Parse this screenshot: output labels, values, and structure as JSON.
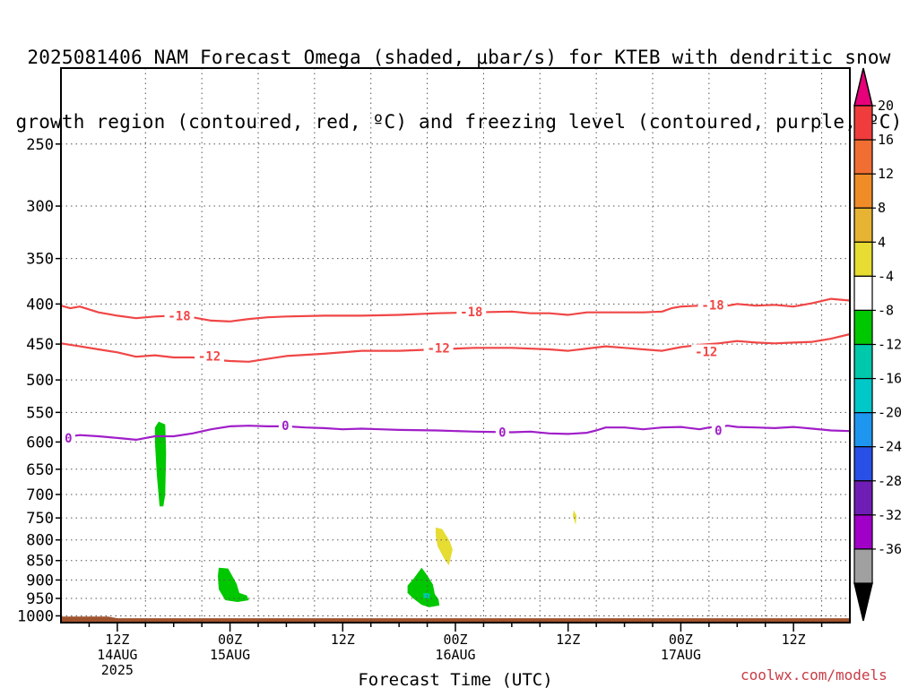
{
  "title_lines": [
    "2025081406 NAM Forecast Omega (shaded, μbar/s) for KTEB with dendritic snow",
    "growth region (contoured, red, ºC) and freezing level (contoured, purple, ºC)"
  ],
  "watermark": "coolwx.com/models",
  "chart_data": {
    "type": "time-height cross section",
    "title": "2025081406 NAM Forecast Omega (shaded, μbar/s) for KTEB with dendritic snow growth region (contoured, red, ºC) and freezing level (contoured, purple, ºC)",
    "xlabel": "Forecast Time (UTC)",
    "ylabel": "",
    "x_range_hours": [
      6,
      90
    ],
    "y_scale": "log",
    "y_range_hpa": [
      1020,
      200
    ],
    "y_ticks": [
      250,
      300,
      350,
      400,
      450,
      500,
      550,
      600,
      650,
      700,
      750,
      800,
      850,
      900,
      950,
      1000
    ],
    "x_ticks": [
      {
        "hour": 12,
        "label": "12Z",
        "date": "14AUG",
        "year": "2025"
      },
      {
        "hour": 24,
        "label": "00Z",
        "date": "15AUG",
        "year": ""
      },
      {
        "hour": 36,
        "label": "12Z",
        "date": "",
        "year": ""
      },
      {
        "hour": 48,
        "label": "00Z",
        "date": "16AUG",
        "year": ""
      },
      {
        "hour": 60,
        "label": "12Z",
        "date": "",
        "year": ""
      },
      {
        "hour": 72,
        "label": "00Z",
        "date": "17AUG",
        "year": ""
      },
      {
        "hour": 84,
        "label": "12Z",
        "date": "",
        "year": ""
      }
    ],
    "grid": true,
    "contours": [
      {
        "name": "-18",
        "color": "#f04646",
        "labels": [
          {
            "hour": 18.6,
            "p": 414
          },
          {
            "hour": 49.7,
            "p": 409
          },
          {
            "hour": 75.4,
            "p": 401
          }
        ],
        "points": [
          [
            6,
            402
          ],
          [
            7,
            405
          ],
          [
            8,
            403
          ],
          [
            10,
            410
          ],
          [
            12,
            414
          ],
          [
            14,
            417
          ],
          [
            16,
            415
          ],
          [
            18,
            414
          ],
          [
            20,
            416
          ],
          [
            22,
            420
          ],
          [
            24,
            421
          ],
          [
            26,
            418
          ],
          [
            28,
            416
          ],
          [
            30,
            415
          ],
          [
            34,
            414
          ],
          [
            38,
            414
          ],
          [
            42,
            413
          ],
          [
            46,
            411
          ],
          [
            50,
            410
          ],
          [
            54,
            409
          ],
          [
            56,
            411
          ],
          [
            58,
            411
          ],
          [
            60,
            413
          ],
          [
            62,
            410
          ],
          [
            64,
            410
          ],
          [
            68,
            410
          ],
          [
            70,
            409
          ],
          [
            71,
            405
          ],
          [
            72,
            403
          ],
          [
            74,
            402
          ],
          [
            76,
            404
          ],
          [
            78,
            400
          ],
          [
            80,
            402
          ],
          [
            82,
            401
          ],
          [
            84,
            403
          ],
          [
            86,
            399
          ],
          [
            88,
            394
          ],
          [
            90,
            396
          ]
        ]
      },
      {
        "name": "-12",
        "color": "#f04646",
        "labels": [
          {
            "hour": 21.8,
            "p": 466
          },
          {
            "hour": 46.2,
            "p": 455
          },
          {
            "hour": 74.7,
            "p": 460
          }
        ],
        "points": [
          [
            6,
            449
          ],
          [
            7,
            451
          ],
          [
            8,
            453
          ],
          [
            10,
            457
          ],
          [
            12,
            461
          ],
          [
            14,
            467
          ],
          [
            16,
            465
          ],
          [
            18,
            468
          ],
          [
            20,
            468
          ],
          [
            22,
            471
          ],
          [
            24,
            473
          ],
          [
            26,
            474
          ],
          [
            28,
            470
          ],
          [
            30,
            466
          ],
          [
            34,
            463
          ],
          [
            38,
            459
          ],
          [
            42,
            459
          ],
          [
            46,
            457
          ],
          [
            50,
            455
          ],
          [
            54,
            455
          ],
          [
            58,
            457
          ],
          [
            60,
            459
          ],
          [
            62,
            456
          ],
          [
            64,
            453
          ],
          [
            66,
            455
          ],
          [
            68,
            457
          ],
          [
            70,
            459
          ],
          [
            72,
            454
          ],
          [
            74,
            451
          ],
          [
            76,
            449
          ],
          [
            78,
            446
          ],
          [
            80,
            448
          ],
          [
            82,
            449
          ],
          [
            84,
            448
          ],
          [
            86,
            447
          ],
          [
            88,
            443
          ],
          [
            90,
            437
          ]
        ]
      },
      {
        "name": "0",
        "color": "#a01ec8",
        "labels": [
          {
            "hour": 6.8,
            "p": 593
          },
          {
            "hour": 29.9,
            "p": 572
          },
          {
            "hour": 53.0,
            "p": 583
          },
          {
            "hour": 76.0,
            "p": 580
          }
        ],
        "points": [
          [
            6,
            592
          ],
          [
            8,
            588
          ],
          [
            10,
            590
          ],
          [
            12,
            593
          ],
          [
            14,
            596
          ],
          [
            16,
            590
          ],
          [
            18,
            590
          ],
          [
            20,
            585
          ],
          [
            22,
            578
          ],
          [
            24,
            573
          ],
          [
            26,
            572
          ],
          [
            28,
            573
          ],
          [
            30,
            573
          ],
          [
            32,
            575
          ],
          [
            34,
            576
          ],
          [
            36,
            578
          ],
          [
            38,
            577
          ],
          [
            40,
            578
          ],
          [
            42,
            579
          ],
          [
            46,
            580
          ],
          [
            50,
            582
          ],
          [
            54,
            583
          ],
          [
            56,
            582
          ],
          [
            58,
            585
          ],
          [
            60,
            586
          ],
          [
            62,
            584
          ],
          [
            63,
            580
          ],
          [
            64,
            575
          ],
          [
            66,
            575
          ],
          [
            68,
            578
          ],
          [
            70,
            575
          ],
          [
            72,
            574
          ],
          [
            74,
            578
          ],
          [
            75,
            575
          ],
          [
            76,
            574
          ],
          [
            77,
            572
          ],
          [
            78,
            574
          ],
          [
            80,
            575
          ],
          [
            82,
            576
          ],
          [
            84,
            574
          ],
          [
            86,
            577
          ],
          [
            88,
            580
          ],
          [
            90,
            581
          ]
        ]
      }
    ],
    "shading": [
      {
        "color": "#00c800",
        "category": "-4 to -8",
        "points": [
          [
            16.4,
            565
          ],
          [
            17.1,
            570
          ],
          [
            17.2,
            620
          ],
          [
            17.1,
            700
          ],
          [
            16.9,
            725
          ],
          [
            16.5,
            725
          ],
          [
            16.2,
            660
          ],
          [
            16.0,
            600
          ],
          [
            16.0,
            575
          ]
        ]
      },
      {
        "color": "#00c800",
        "category": "-4 to -8",
        "points": [
          [
            22.8,
            868
          ],
          [
            23.8,
            870
          ],
          [
            24.7,
            910
          ],
          [
            25.0,
            935
          ],
          [
            25.8,
            942
          ],
          [
            26.0,
            955
          ],
          [
            24.8,
            960
          ],
          [
            23.5,
            955
          ],
          [
            22.8,
            925
          ],
          [
            22.7,
            890
          ]
        ]
      },
      {
        "color": "#00c800",
        "category": "-4 to -8",
        "points": [
          [
            44.4,
            868
          ],
          [
            45.0,
            888
          ],
          [
            45.6,
            912
          ],
          [
            45.8,
            938
          ],
          [
            46.2,
            952
          ],
          [
            46.3,
            970
          ],
          [
            45.2,
            975
          ],
          [
            44.4,
            968
          ],
          [
            43.5,
            950
          ],
          [
            42.9,
            935
          ],
          [
            42.9,
            915
          ],
          [
            43.6,
            895
          ]
        ]
      },
      {
        "color": "#00c8aa",
        "category": "-8 to -12",
        "points": [
          [
            44.6,
            935
          ],
          [
            45.3,
            937
          ],
          [
            45.2,
            950
          ],
          [
            44.6,
            948
          ]
        ]
      },
      {
        "color": "#e6dc32",
        "category": "4 to 8",
        "points": [
          [
            45.9,
            771
          ],
          [
            46.6,
            775
          ],
          [
            47.4,
            803
          ],
          [
            47.7,
            823
          ],
          [
            47.3,
            862
          ],
          [
            46.8,
            845
          ],
          [
            46.1,
            815
          ],
          [
            45.9,
            790
          ]
        ]
      },
      {
        "color": "#e6dc32",
        "category": "4 to 8",
        "points": [
          [
            60.6,
            733
          ],
          [
            60.9,
            745
          ],
          [
            60.8,
            765
          ],
          [
            60.5,
            745
          ]
        ]
      },
      {
        "color": "#a0522d",
        "category": "terrain",
        "points": [
          [
            6,
            1021
          ],
          [
            6,
            1002
          ],
          [
            11,
            1002
          ],
          [
            12,
            1007
          ],
          [
            90,
            1007
          ],
          [
            90,
            1021
          ]
        ]
      }
    ],
    "colorbar": [
      {
        "value": "20",
        "color": "#f03c3c"
      },
      {
        "value": "16",
        "color": "#f06e32"
      },
      {
        "value": "12",
        "color": "#f08c28"
      },
      {
        "value": "8",
        "color": "#e6b432"
      },
      {
        "value": "4",
        "color": "#e6dc32"
      },
      {
        "value": "-4",
        "color": "#ffffff"
      },
      {
        "value": "-8",
        "color": "#00c800"
      },
      {
        "value": "-12",
        "color": "#00c8aa"
      },
      {
        "value": "-16",
        "color": "#00c8c8"
      },
      {
        "value": "-20",
        "color": "#1e96f0"
      },
      {
        "value": "-24",
        "color": "#2850e6"
      },
      {
        "value": "-28",
        "color": "#6e1eb4"
      },
      {
        "value": "-32",
        "color": "#a000c8"
      },
      {
        "value": "-36",
        "color": "#a0a0a0"
      }
    ],
    "colorbar_over": "#e6007a",
    "colorbar_under": "#000000"
  }
}
